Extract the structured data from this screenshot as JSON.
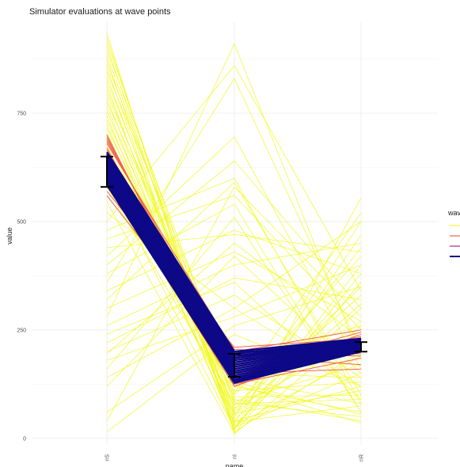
{
  "chart_data": {
    "type": "line",
    "title": "Simulator evaluations at wave points",
    "xlabel": "name",
    "ylabel": "value",
    "categories": [
      "nS",
      "nI",
      "nR"
    ],
    "yticks": [
      0,
      250,
      500,
      750
    ],
    "ylim": [
      -15,
      960
    ],
    "grid": true,
    "legend": {
      "title": "wave",
      "placement": "right",
      "entries": [
        {
          "label": "",
          "color": "#f0f921"
        },
        {
          "label": "",
          "color": "#f0654b"
        },
        {
          "label": "",
          "color": "#b0228f"
        },
        {
          "label": "",
          "color": "#0d0887"
        }
      ]
    },
    "series": [
      {
        "color": "#f0f921",
        "lines": [
          [
            935,
            10,
            260
          ],
          [
            925,
            40,
            120
          ],
          [
            915,
            80,
            90
          ],
          [
            905,
            30,
            300
          ],
          [
            895,
            120,
            60
          ],
          [
            885,
            60,
            350
          ],
          [
            875,
            15,
            200
          ],
          [
            865,
            100,
            420
          ],
          [
            855,
            25,
            150
          ],
          [
            845,
            140,
            80
          ],
          [
            835,
            50,
            500
          ],
          [
            825,
            90,
            40
          ],
          [
            815,
            20,
            380
          ],
          [
            805,
            70,
            230
          ],
          [
            795,
            110,
            130
          ],
          [
            785,
            35,
            470
          ],
          [
            775,
            130,
            55
          ],
          [
            765,
            55,
            310
          ],
          [
            755,
            85,
            170
          ],
          [
            745,
            18,
            555
          ],
          [
            735,
            95,
            100
          ],
          [
            725,
            45,
            270
          ],
          [
            715,
            125,
            35
          ],
          [
            705,
            65,
            440
          ],
          [
            695,
            28,
            190
          ],
          [
            685,
            150,
            140
          ],
          [
            675,
            75,
            330
          ],
          [
            665,
            38,
            75
          ],
          [
            650,
            105,
            520
          ],
          [
            640,
            58,
            110
          ],
          [
            620,
            170,
            260
          ],
          [
            600,
            22,
            400
          ],
          [
            580,
            82,
            50
          ],
          [
            560,
            175,
            210
          ],
          [
            545,
            12,
            360
          ],
          [
            520,
            300,
            120
          ],
          [
            500,
            860,
            340
          ],
          [
            480,
            600,
            80
          ],
          [
            460,
            560,
            250
          ],
          [
            440,
            470,
            430
          ],
          [
            420,
            695,
            160
          ],
          [
            400,
            640,
            300
          ],
          [
            380,
            540,
            60
          ],
          [
            360,
            830,
            200
          ],
          [
            340,
            480,
            380
          ],
          [
            320,
            590,
            100
          ],
          [
            300,
            430,
            270
          ],
          [
            280,
            910,
            180
          ],
          [
            260,
            400,
            450
          ],
          [
            240,
            360,
            90
          ],
          [
            220,
            370,
            320
          ],
          [
            200,
            330,
            140
          ],
          [
            195,
            450,
            230
          ],
          [
            180,
            280,
            400
          ],
          [
            160,
            510,
            60
          ],
          [
            140,
            300,
            500
          ],
          [
            120,
            420,
            150
          ],
          [
            60,
            260,
            350
          ],
          [
            40,
            580,
            280
          ],
          [
            15,
            240,
            120
          ]
        ]
      },
      {
        "color": "#f0654b",
        "lines": [
          [
            700,
            120,
            230
          ],
          [
            695,
            135,
            240
          ],
          [
            690,
            155,
            200
          ],
          [
            685,
            180,
            210
          ],
          [
            680,
            200,
            250
          ],
          [
            670,
            125,
            185
          ],
          [
            665,
            190,
            170
          ],
          [
            660,
            145,
            225
          ],
          [
            650,
            205,
            195
          ],
          [
            640,
            130,
            215
          ],
          [
            630,
            175,
            235
          ],
          [
            620,
            165,
            245
          ],
          [
            610,
            140,
            205
          ],
          [
            600,
            150,
            160
          ],
          [
            590,
            120,
            220
          ],
          [
            580,
            195,
            190
          ],
          [
            570,
            210,
            230
          ],
          [
            560,
            185,
            200
          ]
        ]
      },
      {
        "color": "#b0228f",
        "lines": [
          [
            655,
            150,
            200
          ],
          [
            645,
            170,
            225
          ],
          [
            635,
            160,
            210
          ],
          [
            625,
            180,
            205
          ],
          [
            615,
            145,
            215
          ],
          [
            605,
            165,
            220
          ]
        ]
      },
      {
        "color": "#0d0887",
        "lines": [
          [
            660,
            200,
            230
          ],
          [
            655,
            195,
            228
          ],
          [
            650,
            190,
            226
          ],
          [
            645,
            185,
            224
          ],
          [
            640,
            180,
            222
          ],
          [
            635,
            175,
            220
          ],
          [
            630,
            170,
            218
          ],
          [
            625,
            165,
            216
          ],
          [
            620,
            160,
            214
          ],
          [
            615,
            155,
            212
          ],
          [
            610,
            150,
            210
          ],
          [
            605,
            145,
            208
          ],
          [
            600,
            140,
            206
          ],
          [
            595,
            135,
            204
          ],
          [
            590,
            130,
            202
          ],
          [
            585,
            128,
            200
          ],
          [
            640,
            200,
            200
          ],
          [
            620,
            130,
            230
          ],
          [
            600,
            190,
            215
          ],
          [
            650,
            135,
            210
          ]
        ]
      }
    ],
    "error_bars": [
      {
        "category": "nS",
        "low": 580,
        "high": 650
      },
      {
        "category": "nI",
        "low": 142,
        "high": 195
      },
      {
        "category": "nR",
        "low": 200,
        "high": 222
      }
    ]
  }
}
